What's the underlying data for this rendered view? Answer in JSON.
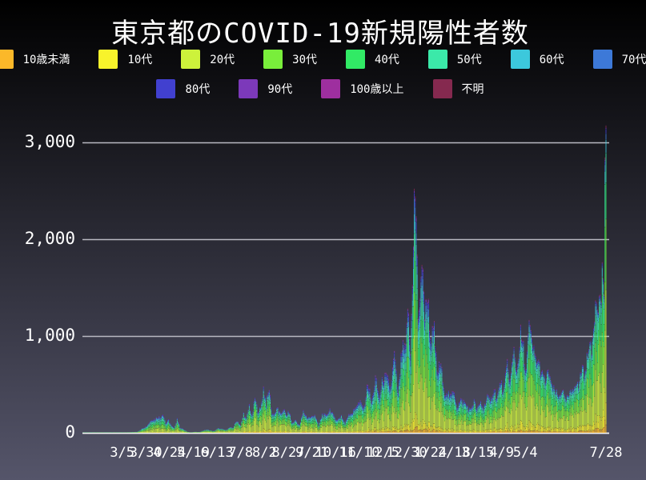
{
  "chart_data": {
    "type": "bar",
    "stacked": true,
    "title": "東京都のCOVID-19新規陽性者数",
    "legend_position": "top",
    "grid": "horizontal",
    "y_axis": {
      "max": 3300,
      "ticks": [
        {
          "label": "0",
          "value": 0
        },
        {
          "label": "1,000",
          "value": 1000
        },
        {
          "label": "2,000",
          "value": 2000
        },
        {
          "label": "3,000",
          "value": 3000
        }
      ]
    },
    "x_axis": {
      "start_date": "2020-01-24",
      "end_date": "2021-07-28",
      "total_days": 551,
      "tick_labels": [
        {
          "label": "3/5",
          "day": 41
        },
        {
          "label": "3/30",
          "day": 66
        },
        {
          "label": "4/24",
          "day": 91
        },
        {
          "label": "5/19",
          "day": 116
        },
        {
          "label": "6/13",
          "day": 141
        },
        {
          "label": "7/8",
          "day": 166
        },
        {
          "label": "8/2",
          "day": 191
        },
        {
          "label": "8/27",
          "day": 216
        },
        {
          "label": "9/21",
          "day": 241
        },
        {
          "label": "10/16",
          "day": 266
        },
        {
          "label": "11/10",
          "day": 291
        },
        {
          "label": "12/5",
          "day": 316
        },
        {
          "label": "12/30",
          "day": 341
        },
        {
          "label": "1/24",
          "day": 366
        },
        {
          "label": "2/18",
          "day": 391
        },
        {
          "label": "3/15",
          "day": 416
        },
        {
          "label": "4/9",
          "day": 441
        },
        {
          "label": "5/4",
          "day": 466
        },
        {
          "label": "7/28",
          "day": 551
        }
      ]
    },
    "series": [
      {
        "name": "10歳未満",
        "color": "#FBB829"
      },
      {
        "name": "10代",
        "color": "#F8F32B"
      },
      {
        "name": "20代",
        "color": "#CDF23B"
      },
      {
        "name": "30代",
        "color": "#79EE3B"
      },
      {
        "name": "40代",
        "color": "#31EA65"
      },
      {
        "name": "50代",
        "color": "#3BE9A9"
      },
      {
        "name": "60代",
        "color": "#3CC8DC"
      },
      {
        "name": "70代",
        "color": "#3D79D8"
      },
      {
        "name": "80代",
        "color": "#4140CF"
      },
      {
        "name": "90代",
        "color": "#7C39BA"
      },
      {
        "name": "100歳以上",
        "color": "#9E2F9F"
      },
      {
        "name": "不明",
        "color": "#85294F"
      }
    ],
    "age_share_keyframes": [
      {
        "day": 0,
        "shares": [
          0.01,
          0.02,
          0.17,
          0.2,
          0.18,
          0.16,
          0.1,
          0.07,
          0.05,
          0.03,
          0.003,
          0.007
        ]
      },
      {
        "day": 160,
        "shares": [
          0.02,
          0.05,
          0.33,
          0.23,
          0.14,
          0.09,
          0.05,
          0.035,
          0.025,
          0.012,
          0.001,
          0.007
        ]
      },
      {
        "day": 330,
        "shares": [
          0.025,
          0.055,
          0.26,
          0.19,
          0.15,
          0.115,
          0.075,
          0.055,
          0.04,
          0.018,
          0.002,
          0.005
        ]
      },
      {
        "day": 440,
        "shares": [
          0.025,
          0.06,
          0.28,
          0.2,
          0.17,
          0.12,
          0.06,
          0.035,
          0.025,
          0.012,
          0.001,
          0.007
        ]
      },
      {
        "day": 551,
        "shares": [
          0.03,
          0.08,
          0.31,
          0.22,
          0.17,
          0.11,
          0.045,
          0.02,
          0.01,
          0.004,
          0.001,
          0.005
        ]
      }
    ],
    "daily_totals": [
      [
        0,
        1
      ],
      [
        10,
        2
      ],
      [
        20,
        3
      ],
      [
        28,
        3
      ],
      [
        36,
        2
      ],
      [
        43,
        4
      ],
      [
        50,
        8
      ],
      [
        57,
        11
      ],
      [
        62,
        45
      ],
      [
        67,
        73
      ],
      [
        72,
        140
      ],
      [
        75,
        144
      ],
      [
        79,
        172
      ],
      [
        81,
        161
      ],
      [
        84,
        206
      ],
      [
        87,
        102
      ],
      [
        90,
        134
      ],
      [
        93,
        72
      ],
      [
        96,
        47
      ],
      [
        99,
        154
      ],
      [
        102,
        58
      ],
      [
        106,
        36
      ],
      [
        110,
        10
      ],
      [
        114,
        5
      ],
      [
        118,
        11
      ],
      [
        122,
        8
      ],
      [
        126,
        22
      ],
      [
        130,
        34
      ],
      [
        134,
        26
      ],
      [
        138,
        18
      ],
      [
        142,
        47
      ],
      [
        146,
        41
      ],
      [
        150,
        29
      ],
      [
        154,
        54
      ],
      [
        158,
        54
      ],
      [
        162,
        131
      ],
      [
        166,
        75
      ],
      [
        169,
        206
      ],
      [
        172,
        143
      ],
      [
        175,
        293
      ],
      [
        178,
        168
      ],
      [
        181,
        366
      ],
      [
        184,
        239
      ],
      [
        187,
        250
      ],
      [
        190,
        472
      ],
      [
        193,
        309
      ],
      [
        196,
        462
      ],
      [
        199,
        197
      ],
      [
        202,
        206
      ],
      [
        205,
        260
      ],
      [
        208,
        186
      ],
      [
        211,
        256
      ],
      [
        214,
        182
      ],
      [
        217,
        226
      ],
      [
        220,
        100
      ],
      [
        224,
        136
      ],
      [
        228,
        77
      ],
      [
        232,
        226
      ],
      [
        236,
        163
      ],
      [
        240,
        162
      ],
      [
        244,
        195
      ],
      [
        248,
        78
      ],
      [
        252,
        196
      ],
      [
        256,
        177
      ],
      [
        260,
        249
      ],
      [
        264,
        177
      ],
      [
        268,
        132
      ],
      [
        272,
        185
      ],
      [
        276,
        102
      ],
      [
        280,
        204
      ],
      [
        284,
        209
      ],
      [
        288,
        294
      ],
      [
        292,
        317
      ],
      [
        296,
        255
      ],
      [
        300,
        534
      ],
      [
        304,
        314
      ],
      [
        308,
        570
      ],
      [
        312,
        372
      ],
      [
        316,
        584
      ],
      [
        320,
        572
      ],
      [
        324,
        480
      ],
      [
        328,
        822
      ],
      [
        332,
        392
      ],
      [
        336,
        884
      ],
      [
        340,
        856
      ],
      [
        342,
        1337
      ],
      [
        345,
        816
      ],
      [
        349,
        2447
      ],
      [
        351,
        2268
      ],
      [
        353,
        1219
      ],
      [
        356,
        1502
      ],
      [
        358,
        1809
      ],
      [
        360,
        1204
      ],
      [
        363,
        1471
      ],
      [
        366,
        986
      ],
      [
        370,
        1064
      ],
      [
        373,
        633
      ],
      [
        377,
        734
      ],
      [
        380,
        429
      ],
      [
        384,
        434
      ],
      [
        387,
        371
      ],
      [
        391,
        445
      ],
      [
        394,
        272
      ],
      [
        398,
        340
      ],
      [
        401,
        329
      ],
      [
        405,
        279
      ],
      [
        408,
        237
      ],
      [
        412,
        335
      ],
      [
        415,
        239
      ],
      [
        419,
        323
      ],
      [
        422,
        256
      ],
      [
        426,
        394
      ],
      [
        429,
        313
      ],
      [
        433,
        475
      ],
      [
        436,
        355
      ],
      [
        440,
        545
      ],
      [
        443,
        421
      ],
      [
        447,
        729
      ],
      [
        450,
        543
      ],
      [
        454,
        861
      ],
      [
        457,
        635
      ],
      [
        461,
        1027
      ],
      [
        464,
        879
      ],
      [
        466,
        609
      ],
      [
        470,
        1121
      ],
      [
        473,
        925
      ],
      [
        477,
        772
      ],
      [
        480,
        732
      ],
      [
        484,
        602
      ],
      [
        487,
        542
      ],
      [
        491,
        648
      ],
      [
        494,
        471
      ],
      [
        498,
        436
      ],
      [
        501,
        369
      ],
      [
        505,
        467
      ],
      [
        508,
        337
      ],
      [
        512,
        388
      ],
      [
        515,
        435
      ],
      [
        519,
        534
      ],
      [
        522,
        476
      ],
      [
        526,
        716
      ],
      [
        529,
        593
      ],
      [
        533,
        950
      ],
      [
        536,
        830
      ],
      [
        540,
        1410
      ],
      [
        543,
        1387
      ],
      [
        546,
        1359
      ],
      [
        547,
        1763
      ],
      [
        549,
        1429
      ],
      [
        550,
        2848
      ],
      [
        551,
        3177
      ]
    ]
  },
  "theme": {
    "background_top": "#000000",
    "background_bottom": "#55556A",
    "grid_color": "#B9B9C2",
    "baseline_color": "#F5F5F5",
    "text_color": "#FFFFFF"
  }
}
